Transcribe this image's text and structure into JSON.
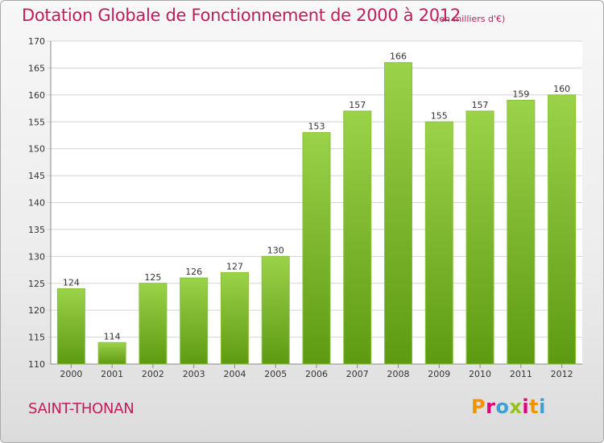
{
  "header": {
    "title": "Dotation Globale de Fonctionnement de 2000 à 2012",
    "unit_note": "(en milliers d'€)"
  },
  "footer": {
    "commune": "SAINT-THONAN",
    "logo_text": "Proxiti",
    "logo_colors": [
      "#f39200",
      "#e2007a",
      "#3aa0d8",
      "#95c11f",
      "#e2007a",
      "#f39200",
      "#3aa0d8"
    ]
  },
  "colors": {
    "bar_light": "#9bd24a",
    "bar_dark": "#5d9a12",
    "title": "#c01d5a",
    "grid": "#d4d4d4"
  },
  "chart_data": {
    "type": "bar",
    "title": "Dotation Globale de Fonctionnement de 2000 à 2012",
    "subtitle": "(en milliers d'€)",
    "xlabel": "",
    "ylabel": "",
    "categories": [
      "2000",
      "2001",
      "2002",
      "2003",
      "2004",
      "2005",
      "2006",
      "2007",
      "2008",
      "2009",
      "2010",
      "2011",
      "2012"
    ],
    "values": [
      124,
      114,
      125,
      126,
      127,
      130,
      153,
      157,
      166,
      155,
      157,
      159,
      160
    ],
    "ylim": [
      110,
      170
    ],
    "yticks": [
      110,
      115,
      120,
      125,
      130,
      135,
      140,
      145,
      150,
      155,
      160,
      165,
      170
    ],
    "grid": true,
    "data_labels": true
  }
}
